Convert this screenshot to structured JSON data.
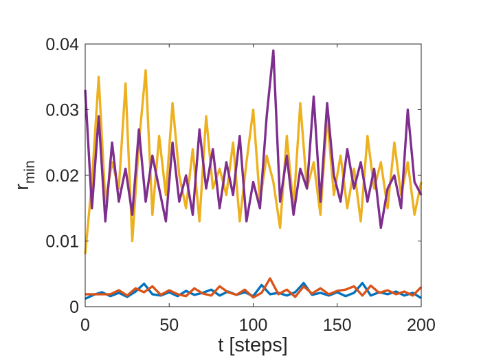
{
  "chart_data": {
    "type": "line",
    "title": "",
    "xlabel": "t [steps]",
    "ylabel": "r",
    "ylabel_subscript": "min",
    "xlim": [
      0,
      200
    ],
    "ylim": [
      0,
      0.04
    ],
    "xticks": [
      0,
      50,
      100,
      150,
      200
    ],
    "xtick_labels": [
      "0",
      "50",
      "100",
      "150",
      "200"
    ],
    "yticks": [
      0,
      0.01,
      0.02,
      0.03,
      0.04
    ],
    "ytick_labels": [
      "0",
      "0.01",
      "0.02",
      "0.03",
      "0.04"
    ],
    "grid": false,
    "legend": "none",
    "series": [
      {
        "name": "series-1",
        "color": "#0072BD",
        "x": [
          0,
          5,
          10,
          15,
          20,
          25,
          30,
          35,
          40,
          45,
          50,
          55,
          60,
          65,
          70,
          75,
          80,
          85,
          90,
          95,
          100,
          105,
          110,
          115,
          120,
          125,
          130,
          135,
          140,
          145,
          150,
          155,
          160,
          165,
          170,
          175,
          180,
          185,
          190,
          195,
          200
        ],
        "values": [
          0.0012,
          0.0018,
          0.0022,
          0.0016,
          0.0021,
          0.0015,
          0.0023,
          0.0035,
          0.0019,
          0.0017,
          0.0022,
          0.0016,
          0.0024,
          0.0018,
          0.0021,
          0.0026,
          0.0017,
          0.0023,
          0.0018,
          0.0022,
          0.0016,
          0.0033,
          0.0019,
          0.0021,
          0.0017,
          0.0022,
          0.0036,
          0.0018,
          0.0021,
          0.0017,
          0.0022,
          0.0016,
          0.0021,
          0.0036,
          0.0017,
          0.0022,
          0.0019,
          0.0023,
          0.0017,
          0.0021,
          0.0013
        ]
      },
      {
        "name": "series-2",
        "color": "#D95319",
        "x": [
          0,
          5,
          10,
          15,
          20,
          25,
          30,
          35,
          40,
          45,
          50,
          55,
          60,
          65,
          70,
          75,
          80,
          85,
          90,
          95,
          100,
          105,
          110,
          115,
          120,
          125,
          130,
          135,
          140,
          145,
          150,
          155,
          160,
          165,
          170,
          175,
          180,
          185,
          190,
          195,
          200
        ],
        "values": [
          0.0019,
          0.0019,
          0.0019,
          0.0019,
          0.0025,
          0.0017,
          0.0028,
          0.0022,
          0.0031,
          0.0018,
          0.0025,
          0.0019,
          0.0016,
          0.0028,
          0.002,
          0.0017,
          0.0031,
          0.0022,
          0.0018,
          0.0026,
          0.0014,
          0.0021,
          0.0043,
          0.0019,
          0.0026,
          0.0015,
          0.0031,
          0.002,
          0.0028,
          0.0019,
          0.0024,
          0.0026,
          0.0031,
          0.0017,
          0.0032,
          0.0021,
          0.0025,
          0.0019,
          0.0023,
          0.0017,
          0.003
        ]
      },
      {
        "name": "series-3",
        "color": "#EDB120",
        "x": [
          0,
          4,
          8,
          12,
          16,
          20,
          24,
          28,
          32,
          36,
          40,
          44,
          48,
          52,
          56,
          60,
          64,
          68,
          72,
          76,
          80,
          84,
          88,
          92,
          96,
          100,
          104,
          108,
          112,
          116,
          120,
          124,
          128,
          132,
          136,
          140,
          144,
          148,
          152,
          156,
          160,
          164,
          168,
          172,
          176,
          180,
          184,
          188,
          192,
          196,
          200
        ],
        "values": [
          0.008,
          0.019,
          0.035,
          0.016,
          0.022,
          0.018,
          0.034,
          0.01,
          0.025,
          0.036,
          0.014,
          0.026,
          0.017,
          0.031,
          0.02,
          0.015,
          0.024,
          0.013,
          0.029,
          0.018,
          0.021,
          0.017,
          0.025,
          0.013,
          0.022,
          0.03,
          0.016,
          0.023,
          0.019,
          0.012,
          0.026,
          0.015,
          0.031,
          0.018,
          0.022,
          0.014,
          0.029,
          0.017,
          0.023,
          0.015,
          0.021,
          0.013,
          0.026,
          0.018,
          0.022,
          0.015,
          0.025,
          0.017,
          0.022,
          0.014,
          0.019
        ]
      },
      {
        "name": "series-4",
        "color": "#7E2F8E",
        "x": [
          0,
          4,
          8,
          12,
          16,
          20,
          24,
          28,
          32,
          36,
          40,
          44,
          48,
          52,
          56,
          60,
          64,
          68,
          72,
          76,
          80,
          84,
          88,
          92,
          96,
          100,
          104,
          108,
          112,
          116,
          120,
          124,
          128,
          132,
          136,
          140,
          144,
          148,
          152,
          156,
          160,
          164,
          168,
          172,
          176,
          180,
          184,
          188,
          192,
          196,
          200
        ],
        "values": [
          0.033,
          0.015,
          0.029,
          0.013,
          0.025,
          0.016,
          0.021,
          0.014,
          0.027,
          0.016,
          0.023,
          0.018,
          0.013,
          0.025,
          0.016,
          0.02,
          0.014,
          0.027,
          0.018,
          0.024,
          0.015,
          0.022,
          0.017,
          0.026,
          0.013,
          0.019,
          0.015,
          0.029,
          0.039,
          0.016,
          0.023,
          0.014,
          0.021,
          0.018,
          0.032,
          0.016,
          0.031,
          0.02,
          0.016,
          0.024,
          0.018,
          0.022,
          0.016,
          0.021,
          0.012,
          0.018,
          0.02,
          0.015,
          0.03,
          0.019,
          0.017
        ]
      }
    ]
  }
}
